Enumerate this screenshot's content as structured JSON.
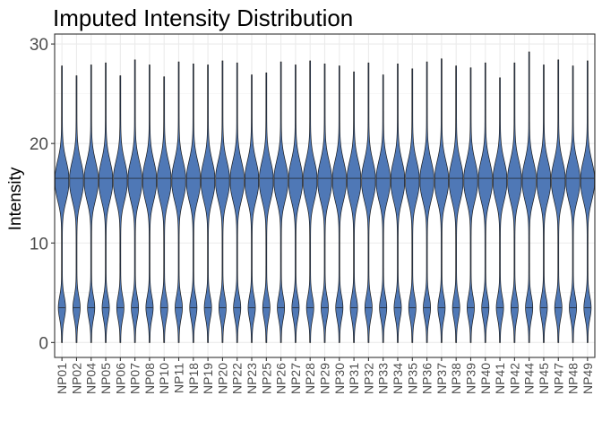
{
  "chart_data": {
    "type": "violin",
    "title": "Imputed Intensity Distribution",
    "xlabel": "",
    "ylabel": "Intensity",
    "ylim": [
      -1.5,
      31
    ],
    "yticks": [
      0,
      10,
      20,
      30
    ],
    "grid": true,
    "legend": "none",
    "fill_color": "#4f78b6",
    "categories": [
      "NP01",
      "NP02",
      "NP04",
      "NP05",
      "NP06",
      "NP07",
      "NP08",
      "NP10",
      "NP11",
      "NP18",
      "NP19",
      "NP20",
      "NP22",
      "NP23",
      "NP25",
      "NP26",
      "NP27",
      "NP28",
      "NP29",
      "NP30",
      "NP31",
      "NP32",
      "NP33",
      "NP34",
      "NP35",
      "NP36",
      "NP37",
      "NP38",
      "NP39",
      "NP40",
      "NP41",
      "NP42",
      "NP44",
      "NP45",
      "NP47",
      "NP48",
      "NP49"
    ],
    "upper_mode_median": 16.5,
    "lower_mode_median": 3.5,
    "minimum": 0,
    "maximum": [
      27.8,
      26.8,
      27.9,
      28.1,
      26.8,
      28.4,
      27.9,
      26.7,
      28.2,
      28.0,
      27.9,
      28.3,
      28.1,
      26.9,
      27.1,
      28.2,
      27.9,
      28.3,
      28.0,
      27.8,
      27.2,
      28.1,
      26.9,
      28.0,
      27.5,
      28.2,
      28.5,
      27.8,
      27.6,
      28.1,
      26.6,
      28.1,
      29.2,
      27.9,
      28.4,
      27.8,
      28.3
    ]
  }
}
